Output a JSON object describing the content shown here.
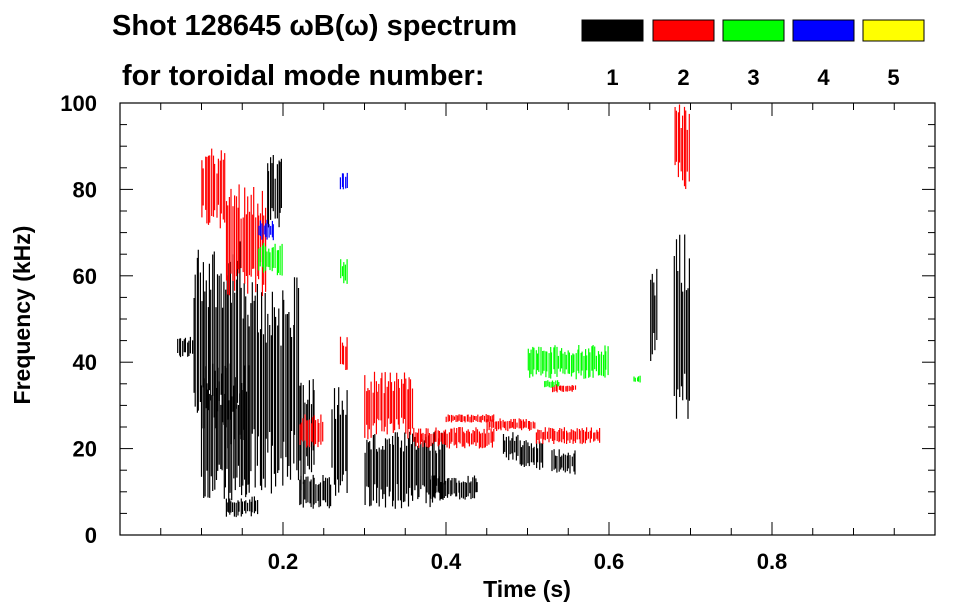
{
  "chart_data": {
    "type": "scatter",
    "title_line1": "Shot 128645 ωB(ω) spectrum",
    "title_line2": "for toroidal mode number:",
    "xlabel": "Time (s)",
    "ylabel": "Frequency (kHz)",
    "xlim": [
      0.0,
      1.0
    ],
    "ylim": [
      0,
      100
    ],
    "x_ticks": [
      0.2,
      0.4,
      0.6,
      0.8
    ],
    "y_ticks": [
      0,
      20,
      40,
      60,
      80,
      100
    ],
    "x_tick_labels": [
      "0.2",
      "0.4",
      "0.6",
      "0.8"
    ],
    "y_tick_labels": [
      "0",
      "20",
      "40",
      "60",
      "80",
      "100"
    ],
    "legend": [
      {
        "label": "1",
        "color": "#000000"
      },
      {
        "label": "2",
        "color": "#ff0000"
      },
      {
        "label": "3",
        "color": "#00ff00"
      },
      {
        "label": "4",
        "color": "#0000ff"
      },
      {
        "label": "5",
        "color": "#ffff00"
      }
    ],
    "series": [
      {
        "mode": 1,
        "color": "#000000",
        "clusters": [
          {
            "t0": 0.07,
            "t1": 0.09,
            "f0": 41,
            "f1": 46
          },
          {
            "t0": 0.09,
            "t1": 0.15,
            "f0": 20,
            "f1": 68
          },
          {
            "t0": 0.1,
            "t1": 0.16,
            "f0": 5,
            "f1": 40
          },
          {
            "t0": 0.15,
            "t1": 0.22,
            "f0": 8,
            "f1": 60
          },
          {
            "t0": 0.18,
            "t1": 0.2,
            "f0": 70,
            "f1": 88
          },
          {
            "t0": 0.13,
            "t1": 0.17,
            "f0": 4,
            "f1": 9
          },
          {
            "t0": 0.22,
            "t1": 0.26,
            "f0": 6,
            "f1": 14
          },
          {
            "t0": 0.22,
            "t1": 0.24,
            "f0": 10,
            "f1": 40
          },
          {
            "t0": 0.26,
            "t1": 0.28,
            "f0": 8,
            "f1": 35
          },
          {
            "t0": 0.3,
            "t1": 0.4,
            "f0": 6,
            "f1": 24
          },
          {
            "t0": 0.38,
            "t1": 0.44,
            "f0": 8,
            "f1": 14
          },
          {
            "t0": 0.47,
            "t1": 0.49,
            "f0": 17,
            "f1": 24
          },
          {
            "t0": 0.49,
            "t1": 0.52,
            "f0": 15,
            "f1": 22
          },
          {
            "t0": 0.53,
            "t1": 0.56,
            "f0": 14,
            "f1": 20
          },
          {
            "t0": 0.65,
            "t1": 0.66,
            "f0": 40,
            "f1": 62
          },
          {
            "t0": 0.68,
            "t1": 0.7,
            "f0": 26,
            "f1": 70
          }
        ]
      },
      {
        "mode": 2,
        "color": "#ff0000",
        "clusters": [
          {
            "t0": 0.1,
            "t1": 0.13,
            "f0": 70,
            "f1": 90
          },
          {
            "t0": 0.13,
            "t1": 0.18,
            "f0": 55,
            "f1": 82
          },
          {
            "t0": 0.22,
            "t1": 0.25,
            "f0": 20,
            "f1": 28
          },
          {
            "t0": 0.27,
            "t1": 0.28,
            "f0": 38,
            "f1": 46
          },
          {
            "t0": 0.3,
            "t1": 0.36,
            "f0": 22,
            "f1": 38
          },
          {
            "t0": 0.36,
            "t1": 0.46,
            "f0": 20,
            "f1": 25
          },
          {
            "t0": 0.4,
            "t1": 0.46,
            "f0": 26,
            "f1": 28
          },
          {
            "t0": 0.45,
            "t1": 0.51,
            "f0": 24,
            "f1": 27
          },
          {
            "t0": 0.51,
            "t1": 0.59,
            "f0": 21,
            "f1": 25
          },
          {
            "t0": 0.53,
            "t1": 0.56,
            "f0": 33,
            "f1": 35
          },
          {
            "t0": 0.68,
            "t1": 0.7,
            "f0": 80,
            "f1": 100
          }
        ]
      },
      {
        "mode": 3,
        "color": "#00ff00",
        "clusters": [
          {
            "t0": 0.17,
            "t1": 0.2,
            "f0": 60,
            "f1": 68
          },
          {
            "t0": 0.27,
            "t1": 0.28,
            "f0": 58,
            "f1": 64
          },
          {
            "t0": 0.5,
            "t1": 0.6,
            "f0": 36,
            "f1": 44
          },
          {
            "t0": 0.52,
            "t1": 0.54,
            "f0": 34,
            "f1": 36
          },
          {
            "t0": 0.63,
            "t1": 0.64,
            "f0": 35,
            "f1": 37
          }
        ]
      },
      {
        "mode": 4,
        "color": "#0000ff",
        "clusters": [
          {
            "t0": 0.17,
            "t1": 0.19,
            "f0": 68,
            "f1": 73
          },
          {
            "t0": 0.27,
            "t1": 0.28,
            "f0": 80,
            "f1": 84
          }
        ]
      }
    ]
  }
}
